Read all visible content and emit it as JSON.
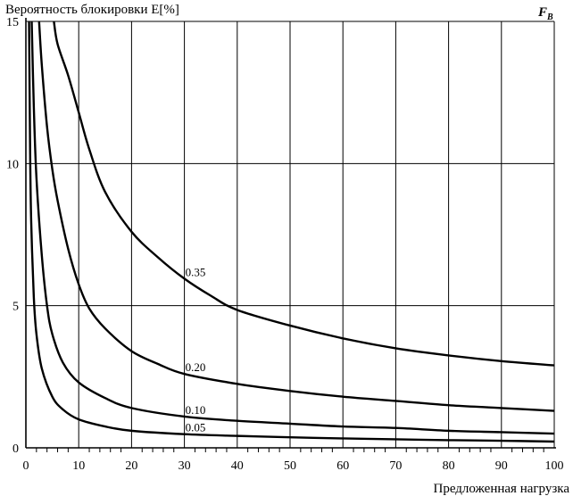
{
  "chart_data": {
    "type": "line",
    "title": "",
    "ylabel": "Вероятность блокировки E[%]",
    "xlabel": "Предложенная нагрузка",
    "corner_label": "F",
    "corner_label_sub": "B",
    "xlim": [
      0,
      100
    ],
    "ylim": [
      0,
      15
    ],
    "xticks": [
      "0",
      "10",
      "20",
      "30",
      "40",
      "50",
      "60",
      "70",
      "80",
      "90",
      "100"
    ],
    "yticks": [
      "0",
      "5",
      "10",
      "15"
    ],
    "grid": true,
    "series": [
      {
        "name": "0.35",
        "x": [
          5.3,
          6,
          8,
          10,
          12,
          15,
          20,
          25,
          30,
          35,
          40,
          50,
          60,
          70,
          80,
          90,
          100
        ],
        "y": [
          15,
          14.2,
          13.1,
          11.8,
          10.5,
          9.0,
          7.6,
          6.7,
          5.95,
          5.35,
          4.85,
          4.3,
          3.85,
          3.5,
          3.25,
          3.05,
          2.9
        ]
      },
      {
        "name": "0.20",
        "x": [
          2.5,
          3,
          4,
          5,
          6,
          8,
          10,
          12,
          15,
          20,
          25,
          30,
          40,
          50,
          60,
          70,
          80,
          90,
          100
        ],
        "y": [
          15,
          13.5,
          11.3,
          9.8,
          8.7,
          7.0,
          5.75,
          4.9,
          4.2,
          3.4,
          2.95,
          2.6,
          2.25,
          2.0,
          1.8,
          1.65,
          1.5,
          1.4,
          1.3
        ]
      },
      {
        "name": "0.10",
        "x": [
          1.1,
          1.5,
          2,
          3,
          4,
          5,
          7,
          10,
          15,
          20,
          30,
          40,
          50,
          60,
          70,
          80,
          90,
          100
        ],
        "y": [
          15,
          12,
          9.5,
          6.8,
          5.0,
          4.0,
          3.0,
          2.3,
          1.75,
          1.4,
          1.1,
          0.95,
          0.85,
          0.75,
          0.7,
          0.6,
          0.55,
          0.5
        ]
      },
      {
        "name": "0.05",
        "x": [
          0.6,
          0.8,
          1,
          1.5,
          2,
          3,
          5,
          7,
          10,
          15,
          20,
          30,
          40,
          50,
          60,
          70,
          80,
          90,
          100
        ],
        "y": [
          15,
          10.5,
          8.0,
          5.3,
          4.0,
          2.8,
          1.8,
          1.35,
          1.0,
          0.75,
          0.6,
          0.48,
          0.42,
          0.37,
          0.33,
          0.3,
          0.27,
          0.25,
          0.22
        ]
      }
    ]
  }
}
